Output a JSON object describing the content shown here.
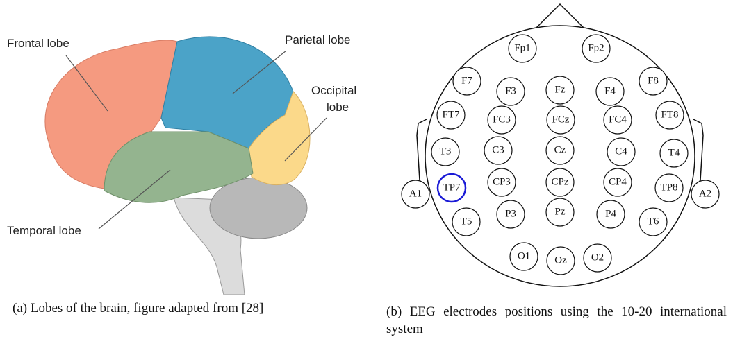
{
  "figure_a": {
    "labels": {
      "frontal": "Frontal lobe",
      "parietal": "Parietal lobe",
      "occipital": [
        "Occipital",
        "lobe"
      ],
      "temporal": "Temporal lobe"
    },
    "caption": "(a) Lobes of the brain, figure adapted from [28]"
  },
  "figure_b": {
    "electrodes": [
      "Fp1",
      "Fp2",
      "F7",
      "F3",
      "Fz",
      "F4",
      "F8",
      "FT7",
      "FC3",
      "FCz",
      "FC4",
      "FT8",
      "T3",
      "C3",
      "Cz",
      "C4",
      "T4",
      "A1",
      "TP7",
      "CP3",
      "CPz",
      "CP4",
      "TP8",
      "A2",
      "T5",
      "P3",
      "Pz",
      "P4",
      "T6",
      "O1",
      "Oz",
      "O2"
    ],
    "caption": "(b) EEG electrodes positions using the 10-20 international system"
  }
}
